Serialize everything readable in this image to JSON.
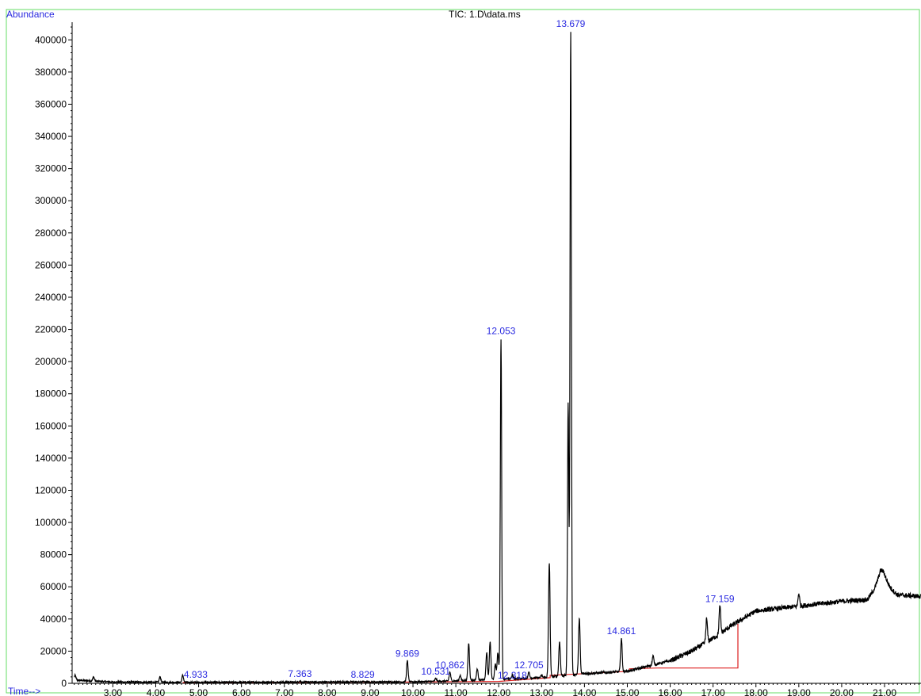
{
  "chart_data": {
    "type": "line",
    "title": "TIC: 1.D\\data.ms",
    "ylabel": "Abundance",
    "xlabel": "Time-->",
    "xlim": [
      2.05,
      21.85
    ],
    "ylim": [
      0,
      410000
    ],
    "x_ticks": [
      3.0,
      4.0,
      5.0,
      6.0,
      7.0,
      8.0,
      9.0,
      10.0,
      11.0,
      12.0,
      13.0,
      14.0,
      15.0,
      16.0,
      17.0,
      18.0,
      19.0,
      20.0,
      21.0
    ],
    "x_tick_labels": [
      "3.00",
      "4.00",
      "5.00",
      "6.00",
      "7.00",
      "8.00",
      "9.00",
      "10.00",
      "11.00",
      "12.00",
      "13.00",
      "14.00",
      "15.00",
      "16.00",
      "17.00",
      "18.00",
      "19.00",
      "20.00",
      "21.00"
    ],
    "y_ticks": [
      0,
      20000,
      40000,
      60000,
      80000,
      100000,
      120000,
      140000,
      160000,
      180000,
      200000,
      220000,
      240000,
      260000,
      280000,
      300000,
      320000,
      340000,
      360000,
      380000,
      400000
    ],
    "y_tick_labels": [
      "0",
      "20000",
      "40000",
      "60000",
      "80000",
      "100000",
      "120000",
      "140000",
      "160000",
      "180000",
      "200000",
      "220000",
      "240000",
      "260000",
      "280000",
      "300000",
      "320000",
      "340000",
      "360000",
      "380000",
      "400000"
    ],
    "series": [
      {
        "color": "#000000",
        "baseline": [
          [
            2.1,
            2000
          ],
          [
            3.0,
            800
          ],
          [
            5.0,
            600
          ],
          [
            8.0,
            800
          ],
          [
            10.0,
            900
          ],
          [
            11.0,
            1500
          ],
          [
            12.0,
            2500
          ],
          [
            13.0,
            3500
          ],
          [
            14.0,
            6000
          ],
          [
            15.0,
            7500
          ],
          [
            16.0,
            14000
          ],
          [
            16.5,
            20000
          ],
          [
            17.0,
            28000
          ],
          [
            17.5,
            37000
          ],
          [
            18.0,
            45000
          ],
          [
            19.0,
            48000
          ],
          [
            20.0,
            51000
          ],
          [
            20.6,
            52000
          ],
          [
            20.9,
            64000
          ],
          [
            21.1,
            60000
          ],
          [
            21.3,
            55000
          ],
          [
            21.85,
            54000
          ]
        ],
        "peaks": [
          [
            2.12,
            5000
          ],
          [
            2.55,
            4000
          ],
          [
            4.1,
            4000
          ],
          [
            4.63,
            5000
          ],
          [
            7.36,
            1500
          ],
          [
            8.83,
            1000
          ],
          [
            9.869,
            14000
          ],
          [
            10.53,
            3000
          ],
          [
            10.862,
            7000
          ],
          [
            11.1,
            5000
          ],
          [
            11.3,
            25000
          ],
          [
            11.5,
            9000
          ],
          [
            11.72,
            19000
          ],
          [
            11.8,
            26000
          ],
          [
            11.92,
            12000
          ],
          [
            11.98,
            19000
          ],
          [
            12.053,
            214000
          ],
          [
            12.318,
            5000
          ],
          [
            12.705,
            7000
          ],
          [
            13.0,
            5000
          ],
          [
            13.18,
            75000
          ],
          [
            13.42,
            26000
          ],
          [
            13.62,
            174000
          ],
          [
            13.679,
            405000
          ],
          [
            13.88,
            41000
          ],
          [
            14.861,
            28000
          ],
          [
            15.6,
            17000
          ],
          [
            16.85,
            40000
          ],
          [
            17.159,
            48000
          ],
          [
            19.0,
            56000
          ],
          [
            20.95,
            70000
          ]
        ]
      }
    ],
    "peak_labels": [
      {
        "text": "4.933",
        "x": 4.933,
        "y": 1500
      },
      {
        "text": "7.363",
        "x": 7.363,
        "y": 2000
      },
      {
        "text": "8.829",
        "x": 8.829,
        "y": 1500
      },
      {
        "text": "9.869",
        "x": 9.869,
        "y": 14500
      },
      {
        "text": "10.531",
        "x": 10.531,
        "y": 3500
      },
      {
        "text": "10.862",
        "x": 10.862,
        "y": 7500
      },
      {
        "text": "12.318",
        "x": 12.318,
        "y": 1000
      },
      {
        "text": "12.705",
        "x": 12.705,
        "y": 7500
      },
      {
        "text": "12.053",
        "x": 12.053,
        "y": 215000
      },
      {
        "text": "13.679",
        "x": 13.679,
        "y": 406000
      },
      {
        "text": "14.861",
        "x": 14.861,
        "y": 28500
      },
      {
        "text": "17.159",
        "x": 17.159,
        "y": 48500
      }
    ],
    "integration_baseline": [
      [
        4.63,
        500
      ],
      [
        7.0,
        600
      ],
      [
        8.0,
        700
      ],
      [
        10.0,
        800
      ],
      [
        12.0,
        1200
      ],
      [
        13.2,
        3500
      ],
      [
        13.2,
        5000
      ],
      [
        14.0,
        6000
      ],
      [
        14.7,
        7000
      ],
      [
        15.05,
        7500
      ],
      [
        15.05,
        9000
      ],
      [
        15.7,
        9500
      ],
      [
        17.58,
        9500
      ],
      [
        17.58,
        37000
      ]
    ],
    "integration_color": "#dd2020",
    "frame_color": "#66dd66",
    "label_color": "#2a2ae0"
  }
}
